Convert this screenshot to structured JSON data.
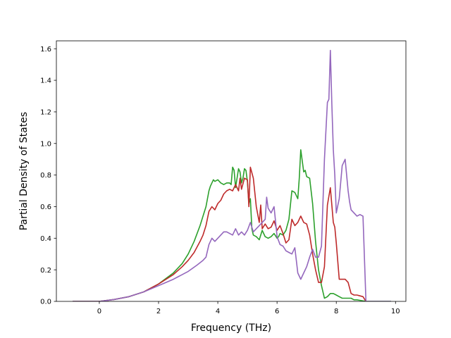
{
  "chart_data": {
    "type": "line",
    "xlabel": "Frequency (THz)",
    "ylabel": "Partial Density of States",
    "xlim": [
      -1.45,
      10.35
    ],
    "ylim": [
      0,
      1.65
    ],
    "xticks": [
      "0",
      "2",
      "4",
      "6",
      "8",
      "10"
    ],
    "xtick_values": [
      0,
      2,
      4,
      6,
      8,
      10
    ],
    "yticks": [
      "0.0",
      "0.2",
      "0.4",
      "0.6",
      "0.8",
      "1.0",
      "1.2",
      "1.4",
      "1.6"
    ],
    "ytick_values": [
      0,
      0.2,
      0.4,
      0.6,
      0.8,
      1.0,
      1.2,
      1.4,
      1.6
    ],
    "grid": false,
    "legend": "none",
    "series": [
      {
        "color": "#2ca02c",
        "x": [
          -0.9,
          0,
          0.2,
          0.5,
          1.0,
          1.5,
          2.0,
          2.5,
          2.8,
          3.0,
          3.2,
          3.4,
          3.5,
          3.6,
          3.7,
          3.75,
          3.8,
          3.85,
          3.9,
          4.0,
          4.1,
          4.2,
          4.3,
          4.4,
          4.45,
          4.5,
          4.55,
          4.6,
          4.7,
          4.75,
          4.8,
          4.85,
          4.9,
          4.95,
          5.0,
          5.05,
          5.1,
          5.15,
          5.2,
          5.3,
          5.4,
          5.5,
          5.6,
          5.7,
          5.8,
          5.9,
          6.0,
          6.05,
          6.1,
          6.2,
          6.3,
          6.4,
          6.5,
          6.6,
          6.7,
          6.75,
          6.8,
          6.9,
          6.95,
          7.0,
          7.1,
          7.2,
          7.3,
          7.4,
          7.5,
          7.6,
          7.7,
          7.8,
          7.9,
          8.0,
          8.1,
          8.2,
          8.3,
          8.4,
          8.5,
          8.6,
          8.7,
          9.0,
          9.85
        ],
        "y": [
          0,
          0,
          0.005,
          0.012,
          0.03,
          0.06,
          0.11,
          0.18,
          0.24,
          0.3,
          0.38,
          0.48,
          0.54,
          0.6,
          0.7,
          0.73,
          0.75,
          0.77,
          0.76,
          0.77,
          0.75,
          0.74,
          0.75,
          0.75,
          0.74,
          0.85,
          0.83,
          0.72,
          0.84,
          0.82,
          0.75,
          0.78,
          0.84,
          0.83,
          0.76,
          0.62,
          0.65,
          0.46,
          0.42,
          0.41,
          0.39,
          0.45,
          0.41,
          0.4,
          0.41,
          0.43,
          0.4,
          0.41,
          0.43,
          0.42,
          0.45,
          0.52,
          0.7,
          0.69,
          0.65,
          0.78,
          0.96,
          0.82,
          0.83,
          0.79,
          0.78,
          0.62,
          0.38,
          0.2,
          0.1,
          0.02,
          0.03,
          0.05,
          0.05,
          0.04,
          0.03,
          0.02,
          0.02,
          0.02,
          0.02,
          0.01,
          0.01,
          0,
          0
        ]
      },
      {
        "color": "#be2a2a",
        "x": [
          -0.9,
          0,
          0.2,
          0.5,
          1.0,
          1.5,
          2.0,
          2.5,
          2.8,
          3.0,
          3.2,
          3.4,
          3.5,
          3.6,
          3.7,
          3.8,
          3.9,
          4.0,
          4.1,
          4.2,
          4.3,
          4.4,
          4.5,
          4.6,
          4.7,
          4.75,
          4.8,
          4.9,
          5.0,
          5.05,
          5.1,
          5.2,
          5.3,
          5.35,
          5.4,
          5.45,
          5.5,
          5.6,
          5.7,
          5.8,
          5.9,
          6.0,
          6.1,
          6.2,
          6.3,
          6.4,
          6.5,
          6.6,
          6.7,
          6.8,
          6.85,
          6.9,
          7.0,
          7.1,
          7.2,
          7.3,
          7.4,
          7.5,
          7.6,
          7.7,
          7.8,
          7.9,
          7.95,
          8.0,
          8.1,
          8.2,
          8.3,
          8.4,
          8.5,
          8.6,
          8.7,
          8.9,
          9.0
        ],
        "y": [
          0,
          0,
          0.005,
          0.012,
          0.03,
          0.06,
          0.11,
          0.17,
          0.22,
          0.26,
          0.31,
          0.38,
          0.42,
          0.48,
          0.57,
          0.6,
          0.58,
          0.62,
          0.64,
          0.68,
          0.7,
          0.71,
          0.7,
          0.74,
          0.7,
          0.78,
          0.71,
          0.78,
          0.77,
          0.6,
          0.85,
          0.78,
          0.6,
          0.55,
          0.5,
          0.61,
          0.46,
          0.49,
          0.46,
          0.47,
          0.51,
          0.45,
          0.48,
          0.43,
          0.37,
          0.39,
          0.52,
          0.48,
          0.5,
          0.54,
          0.52,
          0.5,
          0.49,
          0.42,
          0.3,
          0.2,
          0.12,
          0.12,
          0.22,
          0.61,
          0.72,
          0.5,
          0.47,
          0.37,
          0.14,
          0.14,
          0.14,
          0.12,
          0.05,
          0.04,
          0.04,
          0.03,
          0
        ]
      },
      {
        "color": "#9467bd",
        "x": [
          -0.9,
          0,
          0.2,
          0.5,
          1.0,
          1.5,
          2.0,
          2.5,
          3.0,
          3.3,
          3.5,
          3.6,
          3.7,
          3.8,
          3.9,
          4.0,
          4.1,
          4.2,
          4.3,
          4.4,
          4.5,
          4.6,
          4.7,
          4.8,
          4.9,
          5.0,
          5.1,
          5.2,
          5.3,
          5.4,
          5.5,
          5.6,
          5.65,
          5.7,
          5.8,
          5.9,
          6.0,
          6.1,
          6.2,
          6.3,
          6.4,
          6.5,
          6.6,
          6.7,
          6.8,
          6.9,
          7.0,
          7.1,
          7.2,
          7.3,
          7.4,
          7.5,
          7.6,
          7.7,
          7.75,
          7.8,
          7.85,
          7.9,
          7.95,
          8.0,
          8.1,
          8.2,
          8.3,
          8.4,
          8.45,
          8.5,
          8.6,
          8.7,
          8.8,
          8.9,
          9.0,
          9.05,
          9.85
        ],
        "y": [
          0,
          0,
          0.005,
          0.012,
          0.03,
          0.06,
          0.1,
          0.14,
          0.19,
          0.23,
          0.26,
          0.28,
          0.36,
          0.4,
          0.38,
          0.4,
          0.42,
          0.44,
          0.44,
          0.43,
          0.42,
          0.46,
          0.42,
          0.44,
          0.42,
          0.45,
          0.5,
          0.44,
          0.46,
          0.48,
          0.5,
          0.52,
          0.66,
          0.59,
          0.56,
          0.6,
          0.41,
          0.36,
          0.35,
          0.32,
          0.31,
          0.3,
          0.34,
          0.18,
          0.14,
          0.18,
          0.22,
          0.28,
          0.33,
          0.28,
          0.28,
          0.35,
          0.9,
          1.26,
          1.28,
          1.59,
          1.25,
          0.96,
          0.8,
          0.56,
          0.65,
          0.86,
          0.9,
          0.7,
          0.63,
          0.58,
          0.56,
          0.54,
          0.55,
          0.54,
          0,
          0,
          0
        ]
      }
    ]
  }
}
